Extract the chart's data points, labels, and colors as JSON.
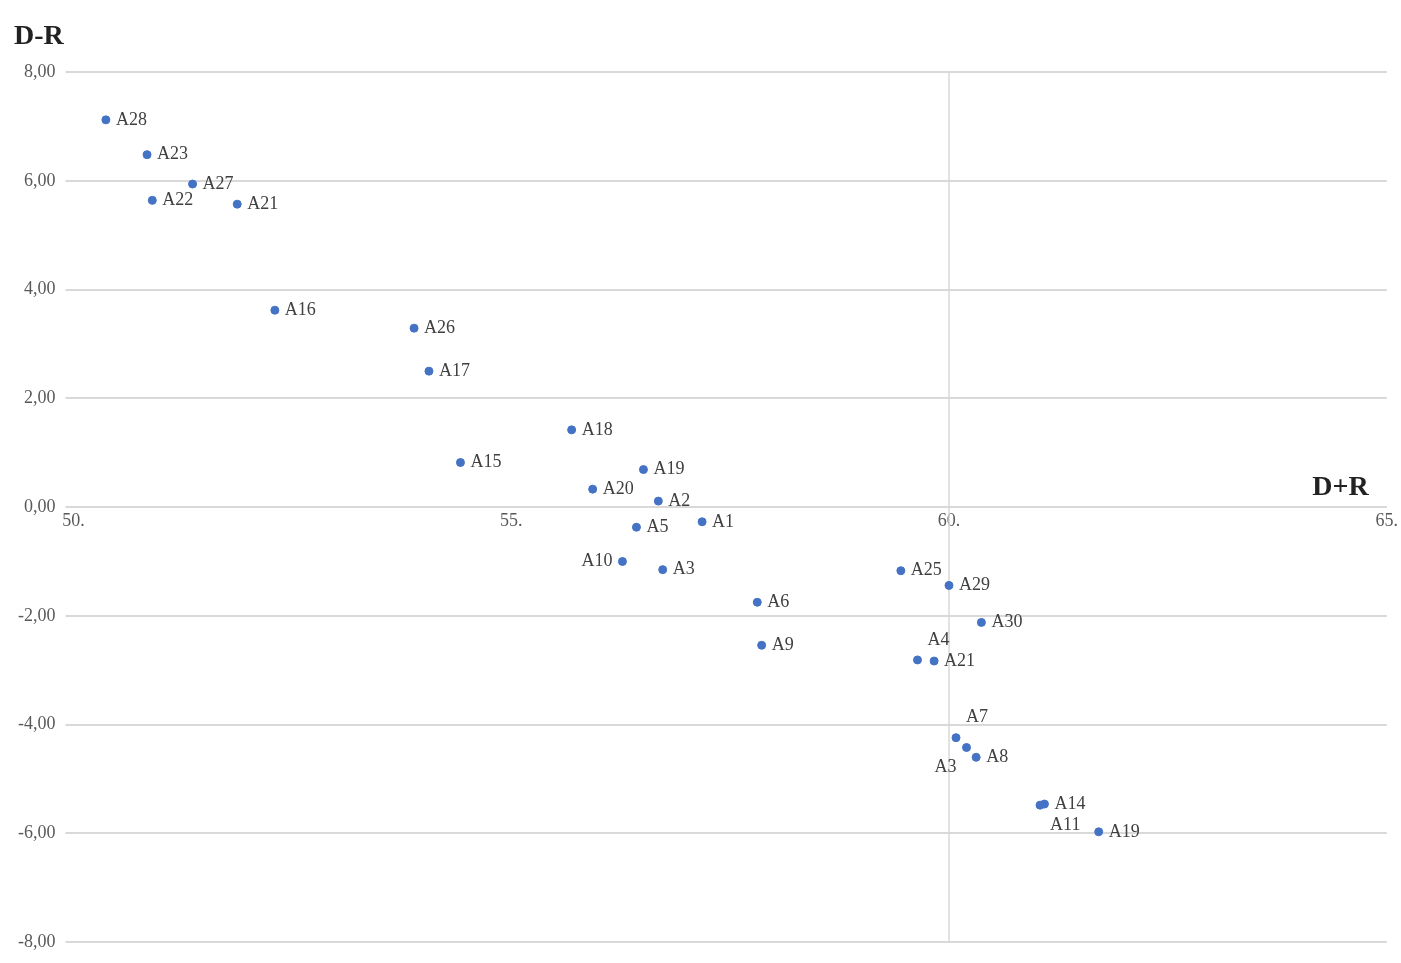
{
  "chart_data": {
    "type": "scatter",
    "xlabel": "D+R",
    "ylabel": "D-R",
    "x": [
      50.37,
      50.84,
      51.36,
      50.9,
      51.87,
      52.3,
      53.89,
      54.06,
      55.69,
      54.42,
      55.93,
      56.51,
      56.68,
      57.18,
      56.43,
      56.27,
      56.73,
      57.81,
      57.86,
      60.08,
      59.64,
      59.83,
      59.45,
      60.0,
      60.37,
      60.2,
      60.31,
      61.09,
      61.04,
      61.71
    ],
    "series": [
      {
        "color": "#4472c4",
        "values": [
          7.12,
          6.48,
          5.94,
          5.64,
          5.57,
          3.62,
          3.29,
          2.5,
          1.42,
          0.82,
          0.33,
          0.69,
          0.11,
          -0.27,
          -0.37,
          -1.0,
          -1.15,
          -1.75,
          -2.54,
          -4.24,
          -2.81,
          -2.83,
          -1.17,
          -1.44,
          -2.12,
          -4.42,
          -4.6,
          -5.46,
          -5.48,
          -5.97
        ]
      }
    ],
    "annotations": [
      {
        "text": "A28",
        "x": 50.37,
        "y": 7.12
      },
      {
        "text": "A23",
        "x": 50.84,
        "y": 6.48
      },
      {
        "text": "A27",
        "x": 51.36,
        "y": 5.94
      },
      {
        "text": "A22",
        "x": 50.9,
        "y": 5.64
      },
      {
        "text": "A21",
        "x": 51.87,
        "y": 5.57
      },
      {
        "text": "A16",
        "x": 52.3,
        "y": 3.62
      },
      {
        "text": "A26",
        "x": 53.89,
        "y": 3.29
      },
      {
        "text": "A17",
        "x": 54.06,
        "y": 2.5
      },
      {
        "text": "A18",
        "x": 55.69,
        "y": 1.42
      },
      {
        "text": "A15",
        "x": 54.42,
        "y": 0.82
      },
      {
        "text": "A20",
        "x": 55.93,
        "y": 0.33
      },
      {
        "text": "A19",
        "x": 56.51,
        "y": 0.69
      },
      {
        "text": "A2",
        "x": 56.68,
        "y": 0.11
      },
      {
        "text": "A1",
        "x": 57.18,
        "y": -0.27
      },
      {
        "text": "A5",
        "x": 56.43,
        "y": -0.37
      },
      {
        "text": "A10",
        "x": 56.27,
        "y": -1.0
      },
      {
        "text": "A3",
        "x": 56.73,
        "y": -1.15
      },
      {
        "text": "A6",
        "x": 57.81,
        "y": -1.75
      },
      {
        "text": "A9",
        "x": 57.86,
        "y": -2.54
      },
      {
        "text": "A7",
        "x": 60.08,
        "y": -4.24
      },
      {
        "text": "A4",
        "x": 59.64,
        "y": -2.81
      },
      {
        "text": "A21",
        "x": 59.83,
        "y": -2.83
      },
      {
        "text": "A25",
        "x": 59.45,
        "y": -1.17
      },
      {
        "text": "A29",
        "x": 60.0,
        "y": -1.44
      },
      {
        "text": "A30",
        "x": 60.37,
        "y": -2.12
      },
      {
        "text": "A3",
        "x": 60.2,
        "y": -4.42
      },
      {
        "text": "A8",
        "x": 60.31,
        "y": -4.6
      },
      {
        "text": "A14",
        "x": 61.09,
        "y": -5.46
      },
      {
        "text": "A11",
        "x": 61.04,
        "y": -5.48
      },
      {
        "text": "A19",
        "x": 61.71,
        "y": -5.97
      }
    ],
    "xlim": [
      50,
      65
    ],
    "xticks": [
      {
        "value": 50,
        "label": "50."
      },
      {
        "value": 55,
        "label": "55."
      },
      {
        "value": 60,
        "label": "60."
      },
      {
        "value": 65,
        "label": "65."
      }
    ],
    "ylim": [
      -8,
      8
    ],
    "yticks": [
      {
        "value": 8,
        "label": "8,00"
      },
      {
        "value": 6,
        "label": "6,00"
      },
      {
        "value": 4,
        "label": "4,00"
      },
      {
        "value": 2,
        "label": "2,00"
      },
      {
        "value": 0,
        "label": "0,00"
      },
      {
        "value": -2,
        "label": "-2,00"
      },
      {
        "value": -4,
        "label": "-4,00"
      },
      {
        "value": -6,
        "label": "-6,00"
      },
      {
        "value": -8,
        "label": "-8,00"
      }
    ],
    "ref_lines": [
      {
        "axis": "x",
        "value": 60,
        "color": "#d9d9d9"
      }
    ],
    "grid": "y",
    "marker": "circle"
  }
}
